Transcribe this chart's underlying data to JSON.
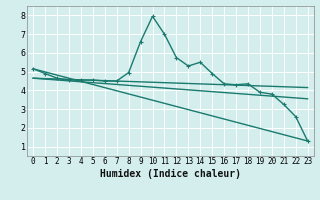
{
  "xlabel": "Humidex (Indice chaleur)",
  "bg_color": "#d4eeee",
  "line_color": "#1a7a6e",
  "grid_color": "#ffffff",
  "xlim": [
    -0.5,
    23.5
  ],
  "ylim": [
    0.5,
    8.5
  ],
  "xticks": [
    0,
    1,
    2,
    3,
    4,
    5,
    6,
    7,
    8,
    9,
    10,
    11,
    12,
    13,
    14,
    15,
    16,
    17,
    18,
    19,
    20,
    21,
    22,
    23
  ],
  "yticks": [
    1,
    2,
    3,
    4,
    5,
    6,
    7,
    8
  ],
  "line1_x": [
    0,
    1,
    2,
    3,
    4,
    5,
    6,
    7,
    8,
    9,
    10,
    11,
    12,
    13,
    14,
    15,
    16,
    17,
    18,
    19,
    20,
    21,
    22,
    23
  ],
  "line1_y": [
    5.15,
    4.9,
    4.65,
    4.55,
    4.55,
    4.55,
    4.5,
    4.5,
    4.95,
    6.6,
    7.95,
    7.0,
    5.75,
    5.3,
    5.5,
    4.9,
    4.35,
    4.3,
    4.35,
    3.9,
    3.8,
    3.25,
    2.6,
    1.3
  ],
  "line2_x": [
    0,
    23
  ],
  "line2_y": [
    4.65,
    4.15
  ],
  "line3_x": [
    0,
    23
  ],
  "line3_y": [
    4.65,
    3.55
  ],
  "line4_x": [
    0,
    23
  ],
  "line4_y": [
    5.15,
    1.3
  ],
  "markersize": 2.8,
  "linewidth": 1.0,
  "xlabel_fontsize": 7,
  "tick_fontsize": 5.5,
  "ytick_fontsize": 6
}
